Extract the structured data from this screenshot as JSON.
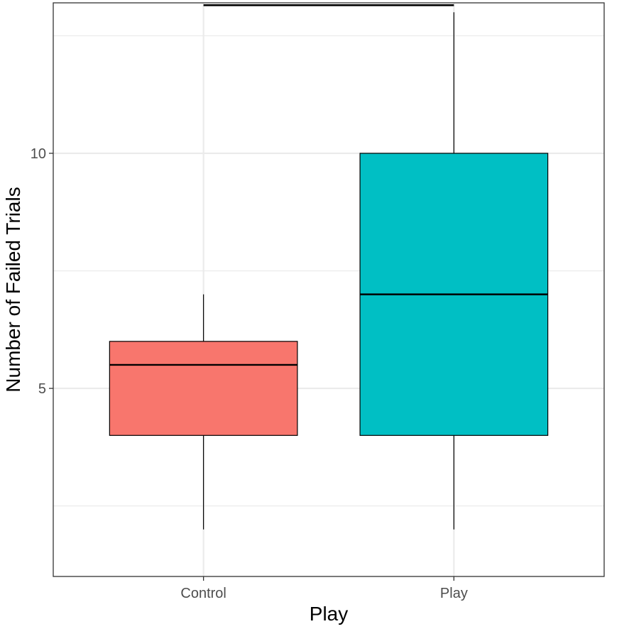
{
  "chart_data": {
    "type": "box",
    "title": "",
    "xlabel": "Play",
    "ylabel": "Number of Failed Trials",
    "categories": [
      "Control",
      "Play"
    ],
    "ylim": [
      1,
      13.2
    ],
    "y_ticks": [
      5,
      10
    ],
    "y_tick_labels": [
      "5",
      "10"
    ],
    "y_minor_gridlines": [
      2.5,
      7.5,
      12.5
    ],
    "grid": true,
    "legend": "none",
    "boxes": [
      {
        "category": "Control",
        "whisker_low": 2,
        "q1": 4,
        "median": 5.5,
        "q3": 6,
        "whisker_high": 7,
        "color": "#F8766D"
      },
      {
        "category": "Play",
        "whisker_low": 2,
        "q1": 4,
        "median": 7,
        "q3": 10,
        "whisker_high": 13,
        "color": "#00BFC4"
      }
    ],
    "significance": {
      "from": "Control",
      "to": "Play",
      "y": 13.15,
      "label": "*"
    }
  }
}
